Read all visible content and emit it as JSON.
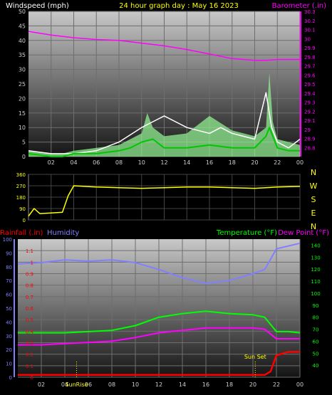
{
  "header": {
    "left": "Windspeed (mph)",
    "center": "24 hour graph day : May 16 2023",
    "right": "Barometer (.in)"
  },
  "colors": {
    "background": "#000000",
    "plot_top": "#c8c8c8",
    "plot_bottom": "#141414",
    "grid": "#6e6e6e",
    "wind": "#ffffff",
    "wind_avg": "#00c800",
    "gust_fill": "#90ee90",
    "barometer": "#ff00ff",
    "direction": "#ffff00",
    "rain": "#ff0000",
    "humidity": "#8080ff",
    "temperature": "#00ff00",
    "dewpoint": "#ff00ff",
    "axis_left": "#ffffff",
    "label_yellow": "#ffff00"
  },
  "chart_data": [
    {
      "type": "line",
      "name": "wind_barometer",
      "title": "24 hour graph day : May 16 2023",
      "ylabel": "Windspeed (mph)",
      "y2label": "Barometer (.in)",
      "x_ticks": [
        "02",
        "04",
        "06",
        "08",
        "10",
        "12",
        "14",
        "16",
        "18",
        "20",
        "22",
        "00"
      ],
      "ylim": [
        0,
        50
      ],
      "y_ticks": [
        "0",
        "5",
        "10",
        "15",
        "20",
        "25",
        "30",
        "35",
        "40",
        "45",
        "50"
      ],
      "y2lim": [
        28.7,
        30.3
      ],
      "y2_ticks": [
        "28.8",
        "28.9",
        "29",
        "29.1",
        "29.2",
        "29.3",
        "29.4",
        "29.5",
        "29.6",
        "29.7",
        "29.8",
        "29.9",
        "30",
        "30.1",
        "30.2",
        "30.3"
      ],
      "grid": true,
      "series": [
        {
          "name": "Barometer",
          "axis": "right",
          "x": [
            0,
            2,
            4,
            6,
            8,
            10,
            12,
            14,
            16,
            18,
            20,
            21,
            22,
            23,
            24
          ],
          "y": [
            30.08,
            30.04,
            30.01,
            29.99,
            29.98,
            29.95,
            29.92,
            29.88,
            29.83,
            29.78,
            29.76,
            29.76,
            29.77,
            29.77,
            29.77
          ]
        },
        {
          "name": "Wind speed",
          "axis": "left",
          "x": [
            0,
            2,
            4,
            6,
            8,
            10,
            11,
            12,
            14,
            15,
            16,
            17,
            18,
            20,
            21,
            21.5,
            22,
            23,
            24
          ],
          "y": [
            2,
            1,
            1,
            2,
            5,
            10,
            12,
            14,
            10,
            9,
            8,
            10,
            8,
            6,
            22,
            10,
            5,
            3,
            6
          ]
        },
        {
          "name": "Wind average",
          "axis": "left",
          "x": [
            0,
            2,
            3,
            4,
            6,
            8,
            9,
            10,
            11,
            12,
            14,
            16,
            18,
            20,
            21,
            21.3,
            22,
            23,
            24
          ],
          "y": [
            1,
            0,
            0,
            1,
            1,
            2,
            3,
            5,
            6,
            3,
            3,
            4,
            3,
            3,
            7,
            10,
            3,
            2,
            2
          ]
        },
        {
          "name": "Wind gust",
          "axis": "left",
          "x": [
            0,
            2,
            3,
            4,
            6,
            8,
            10,
            10.5,
            11,
            12,
            14,
            16,
            18,
            20,
            21,
            21.3,
            21.6,
            22,
            24
          ],
          "y": [
            2,
            1,
            1,
            2,
            3,
            4,
            8,
            15,
            10,
            7,
            8,
            14,
            9,
            7,
            10,
            29,
            12,
            6,
            4
          ]
        }
      ]
    },
    {
      "type": "line",
      "name": "wind_direction",
      "y_ticks": [
        "0",
        "90",
        "180",
        "270",
        "360"
      ],
      "ylim": [
        0,
        360
      ],
      "compass_labels": [
        "N",
        "W",
        "S",
        "E",
        "N"
      ],
      "series": [
        {
          "name": "Wind direction",
          "x": [
            0,
            0.5,
            1,
            2,
            3,
            3.5,
            4,
            6,
            8,
            10,
            12,
            14,
            16,
            18,
            20,
            22,
            24
          ],
          "y": [
            30,
            90,
            50,
            55,
            60,
            190,
            270,
            260,
            255,
            250,
            255,
            260,
            260,
            255,
            250,
            260,
            265
          ]
        }
      ]
    },
    {
      "type": "line",
      "name": "rain_humidity_temperature",
      "left_labels": {
        "rain": "Rainfall (.in)",
        "humidity": "Humidity"
      },
      "right_labels": {
        "temperature": "Temperature (°F)",
        "dewpoint": "Dew Point (°F)"
      },
      "humidity_ticks": [
        "0",
        "10",
        "20",
        "30",
        "40",
        "50",
        "60",
        "70",
        "80",
        "90",
        "100"
      ],
      "humidity_lim": [
        0,
        100
      ],
      "rain_ticks": [
        "0",
        "0.1",
        "0.2",
        "0.3",
        "0.4",
        "0.5",
        "0.6",
        "0.7",
        "0.8",
        "0.9",
        "1",
        "1.1"
      ],
      "rain_lim": [
        0,
        1.2
      ],
      "temp_ticks": [
        "40",
        "50",
        "60",
        "70",
        "80",
        "90",
        "100",
        "110",
        "120",
        "130",
        "140"
      ],
      "temp_lim": [
        30,
        145
      ],
      "x_ticks": [
        "02",
        "04",
        "06",
        "08",
        "10",
        "12",
        "14",
        "16",
        "18",
        "20",
        "22",
        "00"
      ],
      "events": [
        {
          "label": "SunRise",
          "x": 5.0
        },
        {
          "label": "Sun Set",
          "x": 20.2
        }
      ],
      "grid": true,
      "series": [
        {
          "name": "Humidity",
          "axis": "humidity",
          "x": [
            0,
            2,
            4,
            6,
            8,
            10,
            12,
            14,
            16,
            18,
            20,
            21,
            22,
            23,
            24
          ],
          "y": [
            82,
            83,
            85,
            84,
            85,
            83,
            78,
            72,
            68,
            70,
            75,
            78,
            93,
            95,
            97
          ]
        },
        {
          "name": "Rainfall",
          "axis": "rain",
          "x": [
            0,
            2,
            4,
            6,
            8,
            10,
            12,
            14,
            16,
            18,
            20,
            21,
            21.5,
            22,
            23,
            24
          ],
          "y": [
            0.02,
            0.02,
            0.02,
            0.02,
            0.02,
            0.02,
            0.02,
            0.02,
            0.02,
            0.02,
            0.02,
            0.02,
            0.05,
            0.19,
            0.22,
            0.22
          ]
        },
        {
          "name": "Temperature",
          "axis": "temp",
          "x": [
            0,
            2,
            4,
            6,
            8,
            10,
            12,
            14,
            16,
            18,
            20,
            21,
            22,
            23,
            24
          ],
          "y": [
            67,
            67,
            67,
            68,
            69,
            73,
            80,
            83,
            85,
            83,
            82,
            80,
            68,
            68,
            67
          ]
        },
        {
          "name": "Dew Point",
          "axis": "temp",
          "x": [
            0,
            2,
            4,
            6,
            8,
            10,
            12,
            14,
            16,
            18,
            20,
            21,
            22,
            23,
            24
          ],
          "y": [
            57,
            57,
            58,
            59,
            60,
            63,
            67,
            69,
            71,
            71,
            71,
            70,
            62,
            62,
            62
          ]
        }
      ]
    }
  ]
}
